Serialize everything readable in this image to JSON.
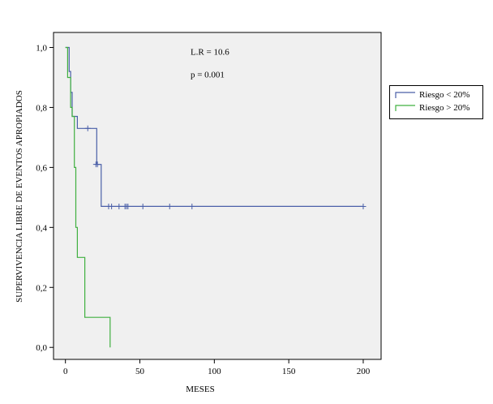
{
  "chart_data": {
    "type": "line",
    "xlabel": "MESES",
    "ylabel": "SUPERVIVENCIA LIBRE DE EVENTOS APROPIADOS",
    "xlim": [
      -8,
      212
    ],
    "ylim": [
      -0.04,
      1.05
    ],
    "x_ticks": [
      0,
      50,
      100,
      150,
      200
    ],
    "x_tick_labels": [
      "0",
      "50",
      "100",
      "150",
      "200"
    ],
    "y_ticks": [
      0,
      0.2,
      0.4,
      0.6,
      0.8,
      1.0
    ],
    "y_tick_labels": [
      "0,0",
      "0,2",
      "0,4",
      "0,6",
      "0,8",
      "1,0"
    ],
    "annotations": [
      {
        "text": "L.R = 10.6",
        "x": 84,
        "y": 0.975
      },
      {
        "text": "p = 0.001",
        "x": 84,
        "y": 0.9
      }
    ],
    "grid": false,
    "legend_position": "right",
    "series": [
      {
        "name": "Riesgo < 20%",
        "color": "#4a5fa8",
        "steps": [
          [
            0,
            1.0
          ],
          [
            2.5,
            0.92
          ],
          [
            3.5,
            0.85
          ],
          [
            4.5,
            0.77
          ],
          [
            8,
            0.73
          ],
          [
            21,
            0.61
          ],
          [
            24,
            0.47
          ],
          [
            200,
            0.47
          ]
        ],
        "censored": [
          [
            15,
            0.73
          ],
          [
            20.5,
            0.61
          ],
          [
            21.5,
            0.61
          ],
          [
            29,
            0.47
          ],
          [
            31,
            0.47
          ],
          [
            36,
            0.47
          ],
          [
            40,
            0.47
          ],
          [
            41,
            0.47
          ],
          [
            42,
            0.47
          ],
          [
            52,
            0.47
          ],
          [
            70,
            0.47
          ],
          [
            85,
            0.47
          ],
          [
            200,
            0.47
          ]
        ]
      },
      {
        "name": "Riesgo > 20%",
        "color": "#40b040",
        "steps": [
          [
            0,
            1.0
          ],
          [
            1.5,
            0.9
          ],
          [
            3.5,
            0.8
          ],
          [
            4.5,
            0.77
          ],
          [
            6,
            0.6
          ],
          [
            7,
            0.4
          ],
          [
            8,
            0.3
          ],
          [
            13,
            0.1
          ],
          [
            30,
            0.1
          ],
          [
            30,
            0.0
          ]
        ],
        "censored": []
      }
    ]
  }
}
